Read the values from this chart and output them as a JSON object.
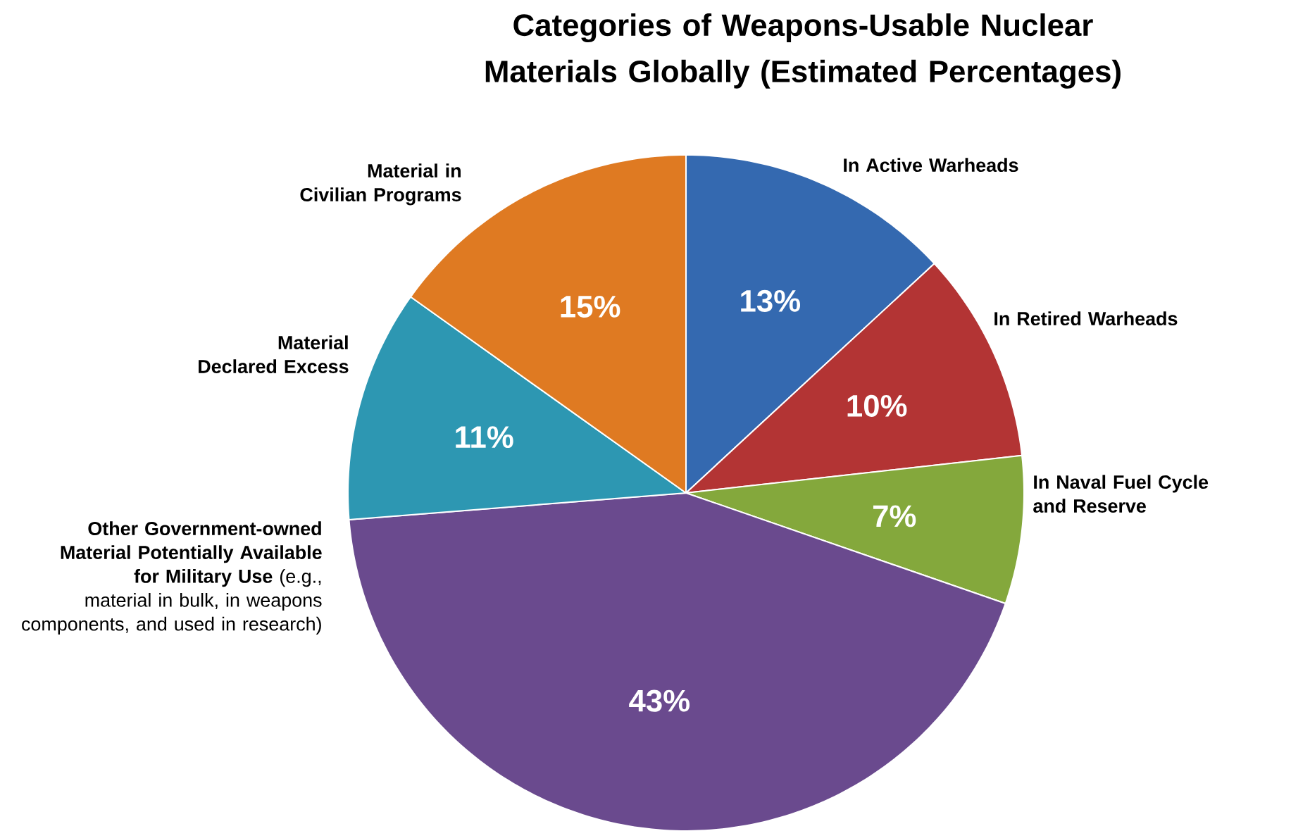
{
  "chart_data": {
    "type": "pie",
    "title": "Categories of  Weapons-Usable Nuclear Materials Globally (Estimated Percentages)",
    "categories": [
      "In Active Warheads",
      "In Retired Warheads",
      "In Naval Fuel Cycle and Reserve",
      "**Other Government-owned Material Potentially Available for Military Use** (e.g., material in bulk, in weapons components, and used in research)",
      "Material Declared Excess",
      "Material in Civilian Programs"
    ],
    "values": [
      13,
      10,
      7,
      43,
      11,
      15
    ],
    "colors": [
      "#3469b0",
      "#b33434",
      "#84a83c",
      "#6a4a8e",
      "#2d97b2",
      "#df7a22"
    ],
    "value_labels": [
      "13%",
      "10%",
      "7%",
      "43%",
      "11%",
      "15%"
    ]
  }
}
